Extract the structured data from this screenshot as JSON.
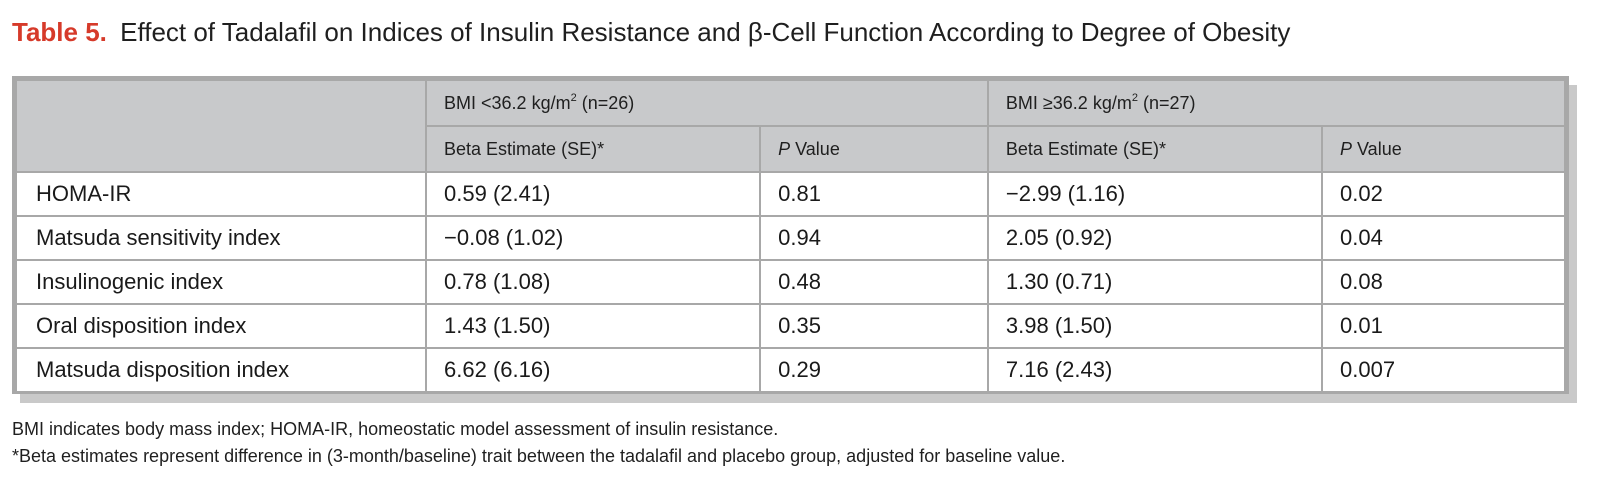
{
  "title": {
    "label": "Table 5.",
    "text": "Effect of Tadalafil on Indices of Insulin Resistance and β-Cell Function According to Degree of Obesity"
  },
  "table": {
    "groups": [
      {
        "prefix": "BMI <36.2 kg/m",
        "sup": "2",
        "suffix": " (n=26)"
      },
      {
        "prefix": "BMI ≥36.2 kg/m",
        "sup": "2",
        "suffix": " (n=27)"
      }
    ],
    "subheaders": {
      "estimate": "Beta Estimate (SE)*",
      "p_italic": "P",
      "p_rest": " Value"
    },
    "rows": [
      {
        "label": "HOMA-IR",
        "est1": "0.59 (2.41)",
        "p1": "0.81",
        "est2": "−2.99 (1.16)",
        "p2": "0.02"
      },
      {
        "label": "Matsuda sensitivity index",
        "est1": "−0.08 (1.02)",
        "p1": "0.94",
        "est2": "2.05 (0.92)",
        "p2": "0.04"
      },
      {
        "label": "Insulinogenic index",
        "est1": "0.78 (1.08)",
        "p1": "0.48",
        "est2": "1.30 (0.71)",
        "p2": "0.08"
      },
      {
        "label": "Oral disposition index",
        "est1": "1.43 (1.50)",
        "p1": "0.35",
        "est2": "3.98 (1.50)",
        "p2": "0.01"
      },
      {
        "label": "Matsuda disposition index",
        "est1": "6.62 (6.16)",
        "p1": "0.29",
        "est2": "7.16 (2.43)",
        "p2": "0.007"
      }
    ]
  },
  "footnotes": [
    "BMI indicates body mass index; HOMA-IR, homeostatic model assessment of insulin resistance.",
    "*Beta estimates represent difference in (3-month/baseline) trait between the tadalafil and placebo group, adjusted for baseline value."
  ]
}
